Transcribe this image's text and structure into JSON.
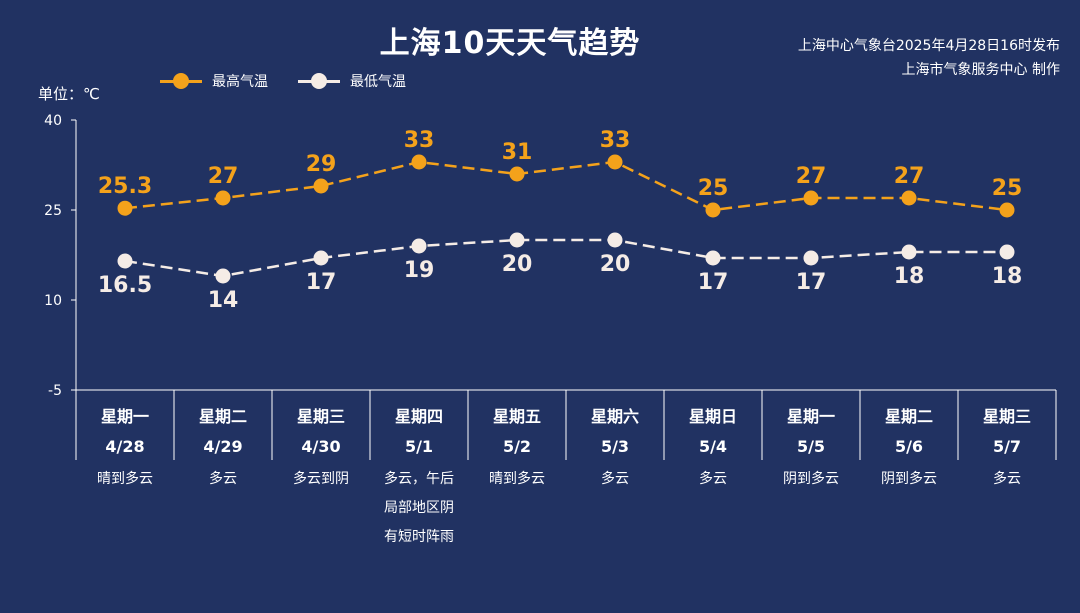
{
  "header": {
    "title": "上海10天天气趋势",
    "source_line1": "上海中心气象台2025年4月28日16时发布",
    "source_line2": "上海市气象服务中心 制作",
    "unit": "单位：℃"
  },
  "colors": {
    "background": "#213262",
    "high": "#f4a21b",
    "low": "#f5ece6",
    "axis": "#ffffff"
  },
  "chart_data": {
    "type": "line",
    "ylim": [
      -5,
      40
    ],
    "yticks": [
      40,
      25,
      10,
      -5
    ],
    "grid": false,
    "legend_position": "top-left",
    "days": [
      {
        "weekday": "星期一",
        "date": "4/28",
        "weather": [
          "晴到多云"
        ]
      },
      {
        "weekday": "星期二",
        "date": "4/29",
        "weather": [
          "多云"
        ]
      },
      {
        "weekday": "星期三",
        "date": "4/30",
        "weather": [
          "多云到阴"
        ]
      },
      {
        "weekday": "星期四",
        "date": "5/1",
        "weather": [
          "多云，午后",
          "局部地区阴",
          "有短时阵雨"
        ]
      },
      {
        "weekday": "星期五",
        "date": "5/2",
        "weather": [
          "晴到多云"
        ]
      },
      {
        "weekday": "星期六",
        "date": "5/3",
        "weather": [
          "多云"
        ]
      },
      {
        "weekday": "星期日",
        "date": "5/4",
        "weather": [
          "多云"
        ]
      },
      {
        "weekday": "星期一",
        "date": "5/5",
        "weather": [
          "阴到多云"
        ]
      },
      {
        "weekday": "星期二",
        "date": "5/6",
        "weather": [
          "阴到多云"
        ]
      },
      {
        "weekday": "星期三",
        "date": "5/7",
        "weather": [
          "多云"
        ]
      }
    ],
    "series": [
      {
        "name": "最高气温",
        "key": "high",
        "values": [
          25.3,
          27,
          29,
          33,
          31,
          33,
          25,
          27,
          27,
          25
        ]
      },
      {
        "name": "最低气温",
        "key": "low",
        "values": [
          16.5,
          14,
          17,
          19,
          20,
          20,
          17,
          17,
          18,
          18
        ]
      }
    ]
  }
}
